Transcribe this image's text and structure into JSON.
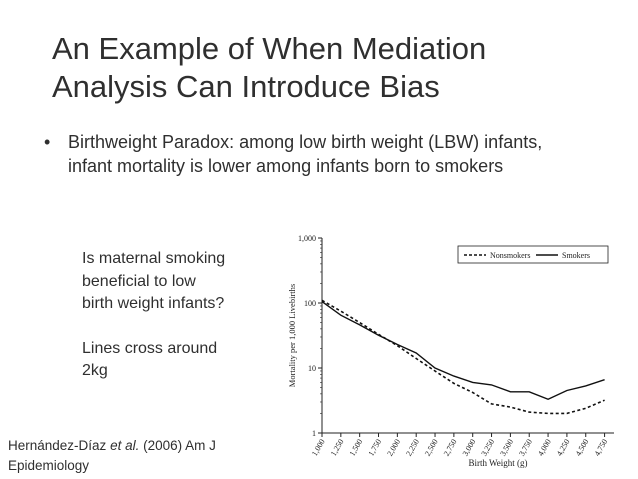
{
  "slide": {
    "title_lines": [
      "An Example of When Mediation",
      "Analysis Can Introduce Bias"
    ],
    "bullet_marker": "•",
    "bullet_text": "Birthweight Paradox: among low birth weight (LBW) infants, infant mortality is lower among infants born to smokers",
    "side_note": {
      "question_lines": [
        "Is maternal smoking",
        "beneficial to low",
        "birth weight infants?"
      ],
      "answer_lines": [
        "Lines cross around",
        "2kg"
      ]
    },
    "citation": {
      "authors": "Hernández-Díaz ",
      "etal": "et al.",
      "rest": " (2006) Am J",
      "journal": "Epidemiology"
    }
  },
  "chart_data": {
    "type": "line",
    "xlabel": "Birth Weight (g)",
    "ylabel": "Mortality per 1,000 Livebirths",
    "yscale": "log",
    "ylim": [
      1,
      1000
    ],
    "y_ticks": [
      1,
      10,
      100,
      1000
    ],
    "y_tick_labels": [
      "1",
      "10",
      "100",
      "1,000"
    ],
    "x_ticks": [
      1000,
      1250,
      1500,
      1750,
      2000,
      2250,
      2500,
      2750,
      3000,
      3250,
      3500,
      3750,
      4000,
      4250,
      4500,
      4750
    ],
    "x_tick_labels": [
      "1,000",
      "1,250",
      "1,500",
      "1,750",
      "2,000",
      "2,250",
      "2,500",
      "2,750",
      "3,000",
      "3,250",
      "3,500",
      "3,750",
      "4,000",
      "4,250",
      "4,500",
      "4,750"
    ],
    "xlim": [
      1000,
      4875
    ],
    "series": [
      {
        "name": "Nonsmokers",
        "style": "dashed",
        "x": [
          1000,
          1250,
          1500,
          1750,
          2000,
          2250,
          2500,
          2750,
          3000,
          3250,
          3500,
          3750,
          4000,
          4250,
          4500,
          4750
        ],
        "y": [
          110,
          75,
          50,
          33,
          22,
          14,
          9,
          5.8,
          4.2,
          2.8,
          2.5,
          2.1,
          2.0,
          2.0,
          2.4,
          3.2
        ]
      },
      {
        "name": "Smokers",
        "style": "solid",
        "x": [
          1000,
          1250,
          1500,
          1750,
          2000,
          2250,
          2500,
          2750,
          3000,
          3250,
          3500,
          3750,
          4000,
          4250,
          4500,
          4750
        ],
        "y": [
          105,
          65,
          46,
          32,
          23,
          17,
          10,
          7.5,
          6.0,
          5.5,
          4.3,
          4.3,
          3.3,
          4.5,
          5.3,
          6.6
        ]
      }
    ]
  }
}
